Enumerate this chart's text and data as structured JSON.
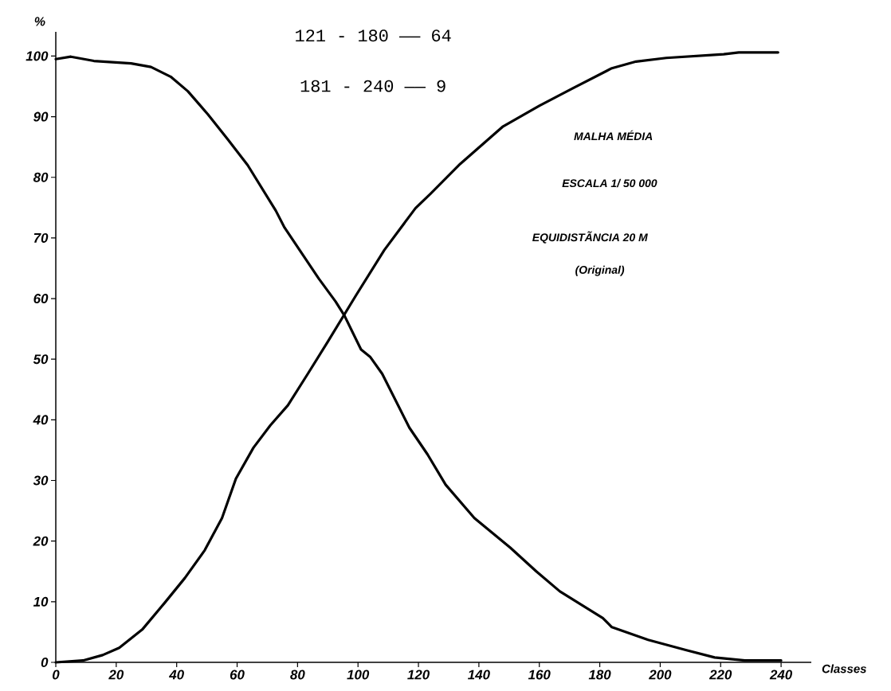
{
  "chart_data": {
    "type": "line",
    "xlabel": "Classes",
    "ylabel": "%",
    "xlim": [
      0,
      250
    ],
    "ylim": [
      0,
      104
    ],
    "xticks": [
      0,
      20,
      40,
      60,
      80,
      100,
      120,
      140,
      160,
      180,
      200,
      220,
      240
    ],
    "yticks": [
      0,
      10,
      20,
      30,
      40,
      50,
      60,
      70,
      80,
      90,
      100
    ],
    "line_style": "solid",
    "annotations": [
      "121 - 180 —— 64",
      "181 - 240 —— 9",
      "MALHA MÉDIA",
      "ESCALA 1/ 50 000",
      "EQUIDISTÃNCIA 20 M",
      "(Original)"
    ],
    "series": [
      {
        "color": "#000000",
        "x": [
          0,
          5,
          12.6,
          24.9,
          31.5,
          38,
          43.7,
          50.3,
          57,
          63.5,
          72.8,
          75.7,
          87,
          92.6,
          95.5,
          101,
          104,
          108,
          117,
          123,
          129,
          138.5,
          150.4,
          159,
          166.8,
          181,
          184,
          196,
          208.7,
          218,
          228,
          240
        ],
        "values": [
          99.5,
          99.9,
          99.2,
          98.8,
          98.2,
          96.6,
          94.2,
          90.4,
          86.2,
          82,
          74.5,
          71.7,
          63.3,
          59.5,
          57.2,
          51.6,
          50.4,
          47.6,
          38.7,
          34.3,
          29.3,
          23.8,
          18.9,
          15,
          11.7,
          7.3,
          5.8,
          3.7,
          2,
          0.8,
          0.3,
          0.3
        ]
      },
      {
        "color": "#000000",
        "x": [
          0,
          9,
          15.5,
          21,
          28.6,
          36,
          42.7,
          49.3,
          55,
          59.6,
          65.4,
          71,
          76.8,
          83.4,
          89.9,
          99.3,
          108.7,
          119,
          124,
          133.8,
          148,
          160,
          170.7,
          184,
          192,
          202,
          221,
          226,
          239
        ],
        "values": [
          0,
          0.3,
          1.2,
          2.4,
          5.4,
          9.8,
          13.9,
          18.5,
          23.8,
          30.3,
          35.4,
          39.1,
          42.4,
          47.6,
          52.8,
          60.5,
          68,
          74.9,
          77.3,
          82.2,
          88.4,
          91.8,
          94.6,
          98,
          99.1,
          99.7,
          100.3,
          100.6,
          100.6
        ]
      }
    ]
  }
}
